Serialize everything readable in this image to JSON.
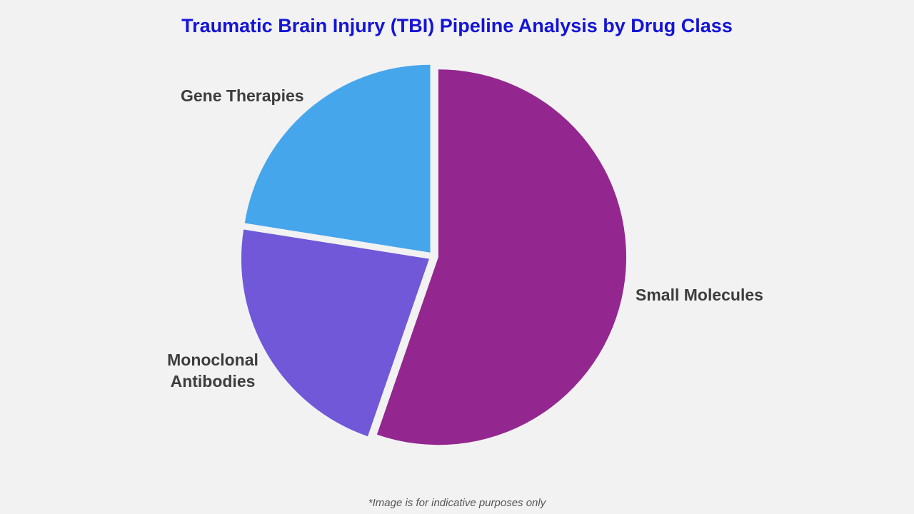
{
  "page": {
    "background_color": "#F2F2F3",
    "footnote": "*Image is for indicative purposes only"
  },
  "colors": {
    "title": "#1414D6",
    "label_text": "#3D3D3D",
    "footnote_text": "#555555"
  },
  "chart_data": {
    "type": "pie",
    "title": "Traumatic Brain Injury (TBI) Pipeline Analysis by Drug Class",
    "value_unit": "share of pipeline, percent (estimated from slice angles; no numeric labels shown)",
    "start_angle_deg": 0,
    "direction": "clockwise",
    "legend": "none",
    "labels_position": "outside",
    "exploded": true,
    "slices": [
      {
        "id": "small-molecules",
        "label": "Small Molecules",
        "value": 55.3,
        "color": "#93278F"
      },
      {
        "id": "monoclonal-antibodies",
        "label": "Monoclonal Antibodies",
        "value": 22.2,
        "color": "#7058D8"
      },
      {
        "id": "gene-therapies",
        "label": "Gene Therapies",
        "value": 22.5,
        "color": "#45A6EC"
      }
    ]
  }
}
